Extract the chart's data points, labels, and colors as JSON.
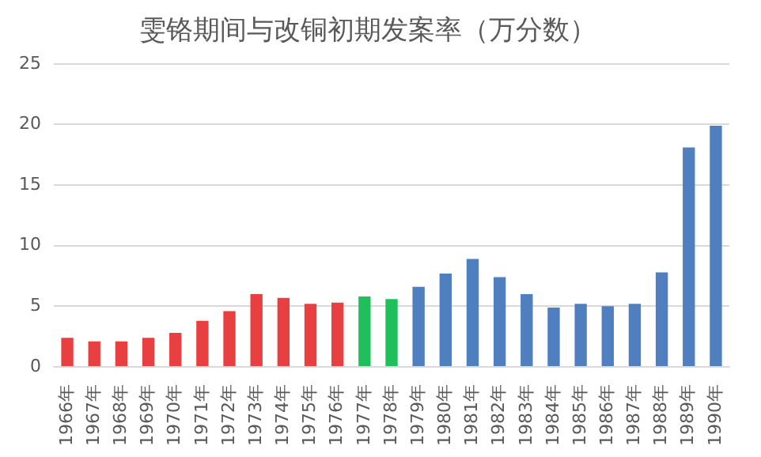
{
  "chart_data": {
    "type": "bar",
    "title": "雯铬期间与改铜初期发案率（万分数）",
    "categories": [
      "1966年",
      "1967年",
      "1968年",
      "1969年",
      "1970年",
      "1971年",
      "1972年",
      "1973年",
      "1974年",
      "1975年",
      "1976年",
      "1977年",
      "1978年",
      "1979年",
      "1980年",
      "1981年",
      "1982年",
      "1983年",
      "1984年",
      "1985年",
      "1986年",
      "1987年",
      "1988年",
      "1989年",
      "1990年"
    ],
    "values": [
      2.4,
      2.1,
      2.1,
      2.4,
      2.8,
      3.8,
      4.6,
      6.0,
      5.7,
      5.2,
      5.3,
      5.8,
      5.6,
      6.6,
      7.7,
      8.9,
      7.4,
      6.0,
      4.9,
      5.2,
      5.0,
      5.2,
      7.8,
      18.1,
      19.9
    ],
    "colors": [
      "#e84040",
      "#e84040",
      "#e84040",
      "#e84040",
      "#e84040",
      "#e84040",
      "#e84040",
      "#e84040",
      "#e84040",
      "#e84040",
      "#e84040",
      "#1fbf5c",
      "#1fbf5c",
      "#4f7fbf",
      "#4f7fbf",
      "#4f7fbf",
      "#4f7fbf",
      "#4f7fbf",
      "#4f7fbf",
      "#4f7fbf",
      "#4f7fbf",
      "#4f7fbf",
      "#4f7fbf",
      "#4f7fbf",
      "#4f7fbf"
    ],
    "ylim": [
      0,
      25
    ],
    "yticks": [
      0,
      5,
      10,
      15,
      20,
      25
    ],
    "grid": "y"
  }
}
